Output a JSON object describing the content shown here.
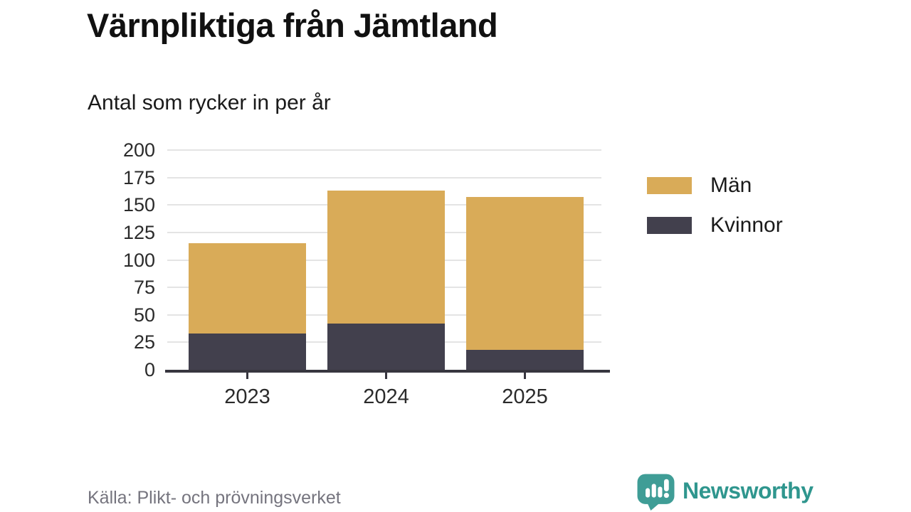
{
  "header": {
    "title": "Värnpliktiga från Jämtland",
    "subtitle": "Antal som rycker in per år"
  },
  "chart_data": {
    "type": "bar",
    "stacked": true,
    "categories": [
      "2023",
      "2024",
      "2025"
    ],
    "series": [
      {
        "name": "Män",
        "color": "#d9ab58",
        "values": [
          82,
          121,
          139
        ]
      },
      {
        "name": "Kvinnor",
        "color": "#42404d",
        "values": [
          33,
          42,
          18
        ]
      }
    ],
    "stack_order": [
      "Kvinnor",
      "Män"
    ],
    "totals": [
      115,
      163,
      157
    ],
    "ylim": [
      0,
      200
    ],
    "yticks": [
      0,
      25,
      50,
      75,
      100,
      125,
      150,
      175,
      200
    ],
    "grid": "horizontal",
    "legend_position": "right",
    "xlabel": "",
    "ylabel": ""
  },
  "footer": {
    "source": "Källa: Plikt- och prövningsverket",
    "brand": "Newsworthy"
  },
  "colors": {
    "men": "#d9ab58",
    "women": "#42404d",
    "grid": "#e4e4e4",
    "axis": "#37363f",
    "brand_teal": "#3f9d96",
    "brand_text": "#2f968e",
    "source_text": "#75747e"
  }
}
